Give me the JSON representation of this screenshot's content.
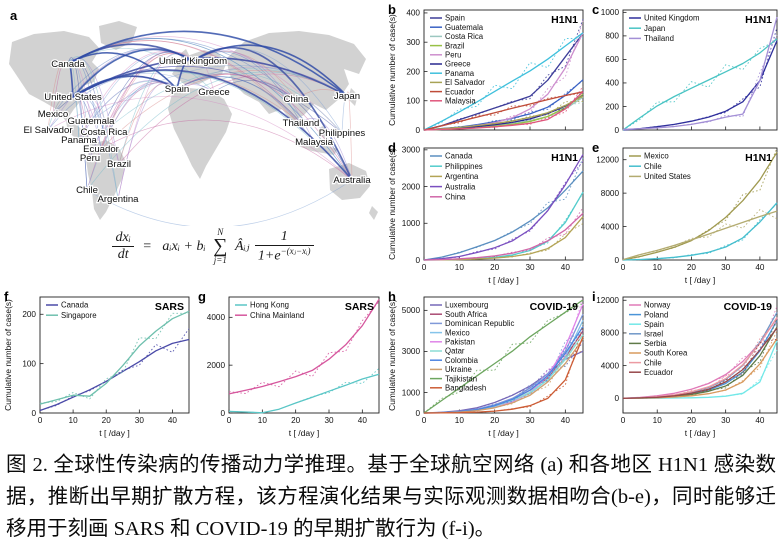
{
  "map": {
    "panel_letter": "a",
    "countries": [
      "Canada",
      "United Kingdom",
      "Spain",
      "Greece",
      "China",
      "Japan",
      "United States",
      "Mexico",
      "Guatemala",
      "El Salvador",
      "Costa Rica",
      "Panama",
      "Ecuador",
      "Peru",
      "Brazil",
      "Thailand",
      "Philippines",
      "Malaysia",
      "Chile",
      "Argentina",
      "Australia"
    ]
  },
  "formula": {
    "lhs_numerator": "dxᵢ",
    "lhs_denominator": "dt",
    "equals": "=",
    "linear_term": "aᵢxᵢ + bᵢ",
    "sum_upper": "N",
    "sum_symbol": "∑",
    "sum_lower": "j=1",
    "adjacency": "Âᵢⱼ",
    "frac_numerator": "1",
    "frac_den_base": "1+e",
    "frac_den_exponent": "−(xⱼ−xᵢ)"
  },
  "caption": {
    "text": "图 2.  全球性传染病的传播动力学推理。基于全球航空网络 (a) 和各地区 H1N1 感染数据，推断出早期扩散方程，该方程演化结果与实际观测数据相吻合(b-e)，同时能够迁移用于刻画 SARS 和 COVID-19 的早期扩散行为 (f-i)。"
  },
  "chart_data": [
    {
      "type": "line",
      "panel": "b",
      "disease": "H1N1",
      "ylabel": "Cumulative number of case(s)",
      "xlabel": "",
      "xticklabels": false,
      "x": [
        0,
        5,
        10,
        15,
        20,
        25,
        30,
        35,
        40,
        45
      ],
      "xlim": [
        0,
        45
      ],
      "ylim": [
        0,
        410
      ],
      "yticks": [
        0,
        100,
        200,
        300,
        400
      ],
      "xticks": [
        0,
        10,
        20,
        30,
        40
      ],
      "series": [
        {
          "name": "Spain",
          "color": "#3d3d99",
          "values": [
            0,
            15,
            35,
            55,
            75,
            95,
            115,
            170,
            250,
            330
          ]
        },
        {
          "name": "Guatemala",
          "color": "#3a62c4",
          "values": [
            0,
            5,
            10,
            18,
            28,
            40,
            55,
            78,
            118,
            172
          ]
        },
        {
          "name": "Costa Rica",
          "color": "#9cc7c0",
          "values": [
            0,
            2,
            5,
            10,
            15,
            22,
            32,
            46,
            72,
            112
          ]
        },
        {
          "name": "Brazil",
          "color": "#98c146",
          "values": [
            0,
            2,
            4,
            8,
            13,
            19,
            29,
            46,
            76,
            122
          ]
        },
        {
          "name": "Peru",
          "color": "#cd8fce",
          "values": [
            0,
            3,
            8,
            15,
            25,
            42,
            72,
            122,
            212,
            332
          ]
        },
        {
          "name": "Greece",
          "color": "#28288f",
          "values": [
            0,
            3,
            7,
            12,
            18,
            26,
            38,
            56,
            82,
            118
          ]
        },
        {
          "name": "Panama",
          "color": "#3fc0dc",
          "values": [
            0,
            30,
            62,
            96,
            132,
            167,
            202,
            242,
            287,
            332
          ]
        },
        {
          "name": "El Salvador",
          "color": "#a8a355",
          "values": [
            0,
            4,
            9,
            15,
            22,
            31,
            43,
            59,
            84,
            116
          ]
        },
        {
          "name": "Ecuador",
          "color": "#bf4b38",
          "values": [
            0,
            14,
            29,
            44,
            59,
            74,
            89,
            104,
            118,
            131
          ]
        },
        {
          "name": "Malaysia",
          "color": "#e0567c",
          "values": [
            0,
            2,
            4,
            7,
            11,
            16,
            23,
            36,
            72,
            131
          ]
        }
      ]
    },
    {
      "type": "line",
      "panel": "c",
      "disease": "H1N1",
      "ylabel": "",
      "xlabel": "",
      "xticklabels": false,
      "x": [
        0,
        5,
        10,
        15,
        20,
        25,
        30,
        35,
        40,
        45
      ],
      "xlim": [
        0,
        45
      ],
      "ylim": [
        0,
        1020
      ],
      "yticks": [
        0,
        200,
        400,
        600,
        800,
        1000
      ],
      "xticks": [
        0,
        10,
        20,
        30,
        40
      ],
      "series": [
        {
          "name": "United Kingdom",
          "color": "#2f2f9c",
          "values": [
            0,
            12,
            28,
            48,
            75,
            110,
            160,
            240,
            420,
            760
          ]
        },
        {
          "name": "Japan",
          "color": "#49c4c4",
          "values": [
            0,
            105,
            205,
            285,
            355,
            425,
            495,
            565,
            655,
            775
          ]
        },
        {
          "name": "Thailand",
          "color": "#a38fd6",
          "values": [
            5,
            10,
            18,
            30,
            48,
            75,
            110,
            135,
            420,
            960
          ]
        }
      ]
    },
    {
      "type": "line",
      "panel": "d",
      "disease": "H1N1",
      "ylabel": "Cumulative number of case(s)",
      "xlabel": "t [ /day ]",
      "xticklabels": true,
      "x": [
        0,
        5,
        10,
        15,
        20,
        25,
        30,
        35,
        40,
        45
      ],
      "xlim": [
        0,
        45
      ],
      "ylim": [
        0,
        3050
      ],
      "yticks": [
        0,
        1000,
        2000,
        3000
      ],
      "xticks": [
        0,
        10,
        20,
        30,
        40
      ],
      "series": [
        {
          "name": "Canada",
          "color": "#5b8fc0",
          "values": [
            0,
            80,
            200,
            360,
            530,
            760,
            1060,
            1420,
            1900,
            2420
          ]
        },
        {
          "name": "Philippines",
          "color": "#52cccc",
          "values": [
            0,
            6,
            16,
            36,
            72,
            135,
            260,
            510,
            1020,
            1850
          ]
        },
        {
          "name": "Argentina",
          "color": "#b3a455",
          "values": [
            0,
            5,
            12,
            26,
            52,
            95,
            165,
            310,
            610,
            1180
          ]
        },
        {
          "name": "Australia",
          "color": "#7a4fc0",
          "values": [
            0,
            35,
            95,
            205,
            335,
            520,
            830,
            1340,
            2050,
            2870
          ]
        },
        {
          "name": "China",
          "color": "#d066a8",
          "values": [
            0,
            12,
            32,
            62,
            112,
            185,
            310,
            520,
            820,
            1270
          ]
        }
      ]
    },
    {
      "type": "line",
      "panel": "e",
      "disease": "H1N1",
      "ylabel": "",
      "xlabel": "t [ /day ]",
      "xticklabels": true,
      "x": [
        0,
        5,
        10,
        15,
        20,
        25,
        30,
        35,
        40,
        45
      ],
      "xlim": [
        0,
        45
      ],
      "ylim": [
        0,
        13400
      ],
      "yticks": [
        0,
        4000,
        8000,
        12000
      ],
      "xticks": [
        0,
        10,
        20,
        30,
        40
      ],
      "series": [
        {
          "name": "Mexico",
          "color": "#a09a50",
          "values": [
            0,
            420,
            920,
            1520,
            2320,
            3520,
            5100,
            7100,
            9600,
            12900
          ]
        },
        {
          "name": "Chile",
          "color": "#45bece",
          "values": [
            0,
            60,
            160,
            320,
            560,
            920,
            1550,
            2650,
            4550,
            6850
          ]
        },
        {
          "name": "United States",
          "color": "#b3ab70",
          "values": [
            50,
            650,
            1150,
            1750,
            2400,
            3100,
            3800,
            4500,
            5200,
            5850
          ]
        }
      ]
    },
    {
      "type": "line",
      "panel": "f",
      "disease": "SARS",
      "ylabel": "Cumulative number of case(s)",
      "xlabel": "t [ /day ]",
      "xticklabels": true,
      "x": [
        0,
        5,
        10,
        15,
        20,
        25,
        30,
        35,
        40,
        45
      ],
      "xlim": [
        0,
        45
      ],
      "ylim": [
        0,
        235
      ],
      "yticks": [
        0,
        100,
        200
      ],
      "xticks": [
        0,
        10,
        20,
        30,
        40
      ],
      "series": [
        {
          "name": "Canada",
          "color": "#4a4aa8",
          "values": [
            5,
            17,
            32,
            47,
            64,
            84,
            104,
            126,
            141,
            149
          ]
        },
        {
          "name": "Singapore",
          "color": "#6fc0ae",
          "values": [
            18,
            27,
            36,
            34,
            60,
            96,
            136,
            166,
            191,
            206
          ]
        }
      ]
    },
    {
      "type": "line",
      "panel": "g",
      "disease": "SARS",
      "ylabel": "",
      "xlabel": "t [ /day ]",
      "xticklabels": true,
      "x": [
        0,
        5,
        10,
        15,
        20,
        25,
        30,
        35,
        40,
        45
      ],
      "xlim": [
        0,
        45
      ],
      "ylim": [
        0,
        4850
      ],
      "yticks": [
        0,
        2000,
        4000
      ],
      "xticks": [
        0,
        10,
        20,
        30,
        40
      ],
      "series": [
        {
          "name": "Hong Kong",
          "color": "#5ac6c6",
          "values": [
            65,
            40,
            10,
            160,
            420,
            660,
            910,
            1160,
            1420,
            1620
          ]
        },
        {
          "name": "China Mainland",
          "color": "#d6579e",
          "values": [
            800,
            950,
            1110,
            1310,
            1520,
            1780,
            2250,
            2850,
            3650,
            4750
          ]
        }
      ]
    },
    {
      "type": "line",
      "panel": "h",
      "disease": "COVID-19",
      "ylabel": "Cumulative number of case(s)",
      "xlabel": "t [ /day ]",
      "xticklabels": true,
      "x": [
        0,
        5,
        10,
        15,
        20,
        25,
        30,
        35,
        40,
        45
      ],
      "xlim": [
        0,
        45
      ],
      "ylim": [
        0,
        5650
      ],
      "yticks": [
        0,
        1000,
        3000,
        5000
      ],
      "xticks": [
        0,
        10,
        20,
        30,
        40
      ],
      "series": [
        {
          "name": "Luxembourg",
          "color": "#7668b8",
          "values": [
            0,
            35,
            105,
            255,
            510,
            860,
            1310,
            1910,
            2610,
            3010
          ]
        },
        {
          "name": "South Africa",
          "color": "#aa4a72",
          "values": [
            0,
            25,
            65,
            155,
            355,
            660,
            1110,
            1710,
            2710,
            4010
          ]
        },
        {
          "name": "Dominican Republic",
          "color": "#8099d8",
          "values": [
            0,
            25,
            75,
            185,
            405,
            710,
            1210,
            1910,
            3010,
            4810
          ]
        },
        {
          "name": "Mexico",
          "color": "#85c4ea",
          "values": [
            0,
            18,
            55,
            135,
            305,
            560,
            960,
            1610,
            2710,
            4510
          ]
        },
        {
          "name": "Pakistan",
          "color": "#df85e8",
          "values": [
            0,
            12,
            45,
            125,
            285,
            560,
            1010,
            1810,
            3210,
            5310
          ]
        },
        {
          "name": "Qatar",
          "color": "#8adcd4",
          "values": [
            0,
            18,
            55,
            145,
            325,
            610,
            1010,
            1610,
            2610,
            3810
          ]
        },
        {
          "name": "Colombia",
          "color": "#4d84e0",
          "values": [
            0,
            25,
            65,
            165,
            355,
            660,
            1110,
            1810,
            2910,
            4210
          ]
        },
        {
          "name": "Ukraine",
          "color": "#cfa070",
          "values": [
            0,
            12,
            45,
            115,
            255,
            490,
            860,
            1510,
            2410,
            3610
          ]
        },
        {
          "name": "Tajikistan",
          "color": "#6da65f",
          "values": [
            0,
            610,
            1210,
            1810,
            2410,
            3010,
            3710,
            4310,
            4910,
            5510
          ]
        },
        {
          "name": "Bangladesh",
          "color": "#cc5c35",
          "values": [
            0,
            6,
            16,
            42,
            92,
            185,
            355,
            710,
            1610,
            3710
          ]
        }
      ]
    },
    {
      "type": "line",
      "panel": "i",
      "disease": "COVID-19",
      "ylabel": "",
      "xlabel": "t [ /day ]",
      "xticklabels": true,
      "x": [
        0,
        5,
        10,
        15,
        20,
        25,
        30,
        35,
        40,
        45
      ],
      "xlim": [
        0,
        45
      ],
      "ylim": [
        -1800,
        12400
      ],
      "yticks": [
        0,
        4000,
        8000,
        12000
      ],
      "xticks": [
        0,
        10,
        20,
        30,
        40
      ],
      "series": [
        {
          "name": "Norway",
          "color": "#e07ab8",
          "values": [
            0,
            110,
            310,
            610,
            1110,
            1810,
            2910,
            4510,
            6810,
            9810
          ]
        },
        {
          "name": "Poland",
          "color": "#4a94d8",
          "values": [
            0,
            35,
            105,
            255,
            560,
            1010,
            1810,
            3210,
            5810,
            9510
          ]
        },
        {
          "name": "Spain",
          "color": "#72e8e8",
          "values": [
            0,
            6,
            12,
            32,
            62,
            125,
            255,
            610,
            2010,
            7010
          ]
        },
        {
          "name": "Israel",
          "color": "#7097c8",
          "values": [
            0,
            55,
            155,
            355,
            710,
            1310,
            2310,
            4010,
            6810,
            10510
          ]
        },
        {
          "name": "Serbia",
          "color": "#5f7a48",
          "values": [
            0,
            25,
            85,
            205,
            460,
            860,
            1510,
            2810,
            5210,
            8710
          ]
        },
        {
          "name": "South Korea",
          "color": "#d89a5e",
          "values": [
            0,
            25,
            65,
            155,
            305,
            560,
            1010,
            2010,
            4210,
            7310
          ]
        },
        {
          "name": "Chile",
          "color": "#ec9aa2",
          "values": [
            0,
            65,
            185,
            410,
            810,
            1410,
            2410,
            4110,
            6710,
            9910
          ]
        },
        {
          "name": "Ecuador",
          "color": "#96474a",
          "values": [
            0,
            45,
            125,
            305,
            610,
            1110,
            2010,
            3510,
            5910,
            8610
          ]
        }
      ]
    }
  ]
}
